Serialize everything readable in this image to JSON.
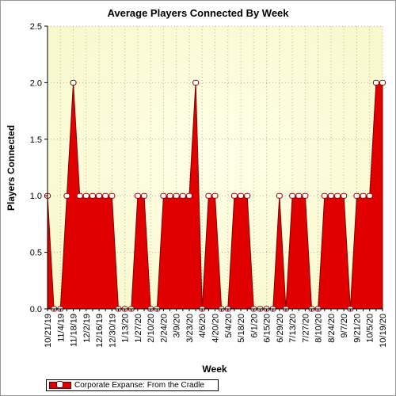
{
  "chart_data": {
    "type": "area",
    "title": "Average Players Connected By Week",
    "xlabel": "Week",
    "ylabel": "Players Connected",
    "ylim": [
      0,
      2.5
    ],
    "yticks": [
      "0.0",
      "0.5",
      "1.0",
      "1.5",
      "2.0",
      "2.5"
    ],
    "grid": true,
    "legend_position": "bottom-left",
    "x": [
      "10/21/19",
      "10/28/19",
      "11/4/19",
      "11/11/19",
      "11/18/19",
      "11/25/19",
      "12/2/19",
      "12/9/19",
      "12/16/19",
      "12/23/19",
      "12/30/19",
      "1/6/20",
      "1/13/20",
      "1/20/20",
      "1/27/20",
      "2/3/20",
      "2/10/20",
      "2/17/20",
      "2/24/20",
      "3/2/20",
      "3/9/20",
      "3/16/20",
      "3/23/20",
      "3/30/20",
      "4/6/20",
      "4/13/20",
      "4/20/20",
      "4/27/20",
      "5/4/20",
      "5/11/20",
      "5/18/20",
      "5/25/20",
      "6/1/20",
      "6/8/20",
      "6/15/20",
      "6/22/20",
      "6/29/20",
      "7/6/20",
      "7/13/20",
      "7/20/20",
      "7/27/20",
      "8/3/20",
      "8/10/20",
      "8/17/20",
      "8/24/20",
      "8/31/20",
      "9/7/20",
      "9/14/20",
      "9/21/20",
      "9/28/20",
      "10/5/20",
      "10/12/20",
      "10/19/20"
    ],
    "x_tick_labels": [
      "10/21/19",
      "11/4/19",
      "11/18/19",
      "12/2/19",
      "12/16/19",
      "12/30/19",
      "1/13/20",
      "1/27/20",
      "2/10/20",
      "2/24/20",
      "3/9/20",
      "3/23/20",
      "4/6/20",
      "4/20/20",
      "5/4/20",
      "5/18/20",
      "6/1/20",
      "6/15/20",
      "6/29/20",
      "7/13/20",
      "7/27/20",
      "8/10/20",
      "8/24/20",
      "9/7/20",
      "9/21/20",
      "10/5/20",
      "10/19/20"
    ],
    "series": [
      {
        "name": "Corporate Expanse: From the Cradle",
        "color": "#e00000",
        "values": [
          1,
          0,
          0,
          1,
          2,
          1,
          1,
          1,
          1,
          1,
          1,
          0,
          0,
          0,
          1,
          1,
          0,
          0,
          1,
          1,
          1,
          1,
          1,
          2,
          0,
          1,
          1,
          0,
          0,
          1,
          1,
          1,
          0,
          0,
          0,
          0,
          1,
          0,
          1,
          1,
          1,
          0,
          0,
          1,
          1,
          1,
          1,
          0,
          1,
          1,
          1,
          2,
          2
        ]
      }
    ]
  }
}
